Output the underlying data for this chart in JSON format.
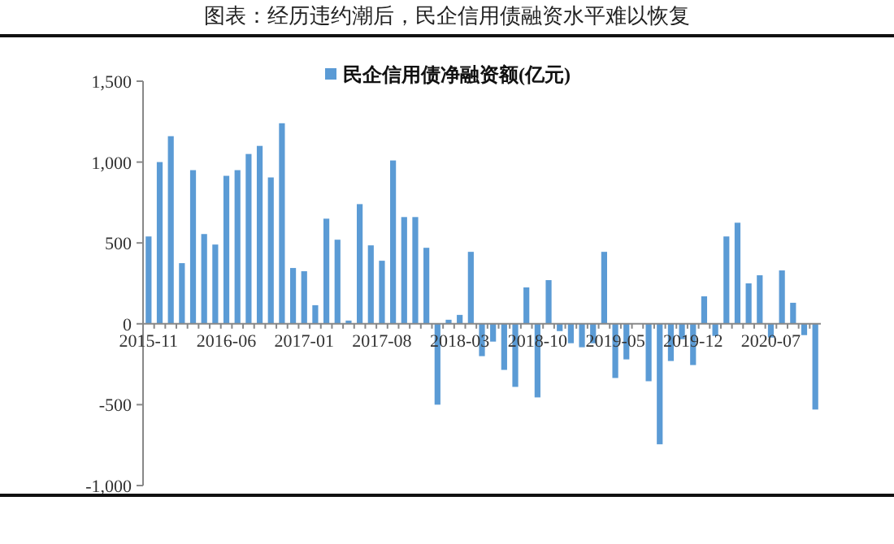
{
  "chart_data": {
    "type": "bar",
    "title": "图表：经历违约潮后，民企信用债融资水平难以恢复",
    "categories": [
      "2015-11",
      null,
      null,
      null,
      null,
      null,
      null,
      "2016-06",
      null,
      null,
      null,
      null,
      null,
      null,
      "2017-01",
      null,
      null,
      null,
      null,
      null,
      null,
      "2017-08",
      null,
      null,
      null,
      null,
      null,
      null,
      "2018-03",
      null,
      null,
      null,
      null,
      null,
      null,
      "2018-10",
      null,
      null,
      null,
      null,
      null,
      null,
      "2019-05",
      null,
      null,
      null,
      null,
      null,
      null,
      "2019-12",
      null,
      null,
      null,
      null,
      null,
      null,
      "2020-07",
      null,
      null,
      null,
      null
    ],
    "series": [
      {
        "name": "民企信用债净融资额(亿元)",
        "color": "#5b9bd5",
        "values": [
          540,
          1000,
          1160,
          375,
          950,
          555,
          490,
          915,
          950,
          1050,
          1100,
          905,
          1240,
          345,
          325,
          115,
          650,
          520,
          20,
          740,
          485,
          390,
          1010,
          660,
          660,
          470,
          -500,
          25,
          55,
          445,
          -200,
          -110,
          -285,
          -390,
          225,
          -455,
          270,
          -45,
          -120,
          -145,
          -120,
          445,
          -335,
          -220,
          null,
          -355,
          -745,
          -230,
          -95,
          -255,
          170,
          -75,
          540,
          625,
          250,
          300,
          -85,
          330,
          130,
          -70,
          -530
        ]
      }
    ],
    "ylim": [
      -1000,
      1500
    ],
    "yticks": [
      {
        "value": -1000,
        "label": "-1,000"
      },
      -500,
      0,
      500,
      {
        "value": 1000,
        "label": "1,000"
      },
      {
        "value": 1500,
        "label": "1,500"
      }
    ],
    "legend": "top"
  }
}
